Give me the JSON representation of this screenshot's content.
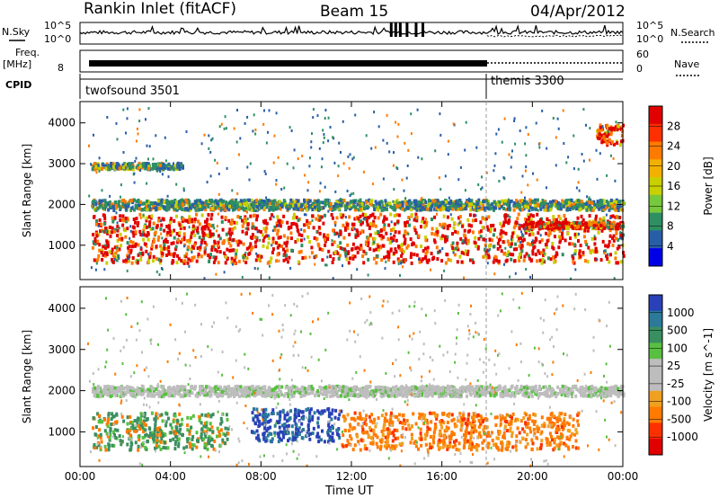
{
  "header": {
    "station": "Rankin Inlet (fitACF)",
    "beam": "Beam 15",
    "date": "04/Apr/2012"
  },
  "top_panels": {
    "nsky_label": "N.Sky",
    "nsky_ticks": [
      "10^5",
      "10^0"
    ],
    "nsearch_label": "N.Search",
    "nsearch_ticks": [
      "10^5",
      "10^0"
    ],
    "freq_label": "Freq.",
    "freq_unit": "[MHz]",
    "freq_tick": "8",
    "nave_label": "Nave",
    "nave_ticks": [
      "60",
      "0"
    ],
    "cpid_label": "CPID",
    "cpid_segments": [
      {
        "name": "twofsound 3501",
        "start_h": 0,
        "end_h": 18
      },
      {
        "name": "themis 3300",
        "start_h": 18,
        "end_h": 24
      }
    ]
  },
  "chart_data": [
    {
      "type": "heatmap",
      "title": "Power",
      "xlabel": "",
      "ylabel": "Slant Range [km]",
      "xlim": [
        0,
        24
      ],
      "ylim": [
        180,
        4500
      ],
      "yticks": [
        "1000",
        "2000",
        "3000",
        "4000"
      ],
      "colorbar": {
        "label": "Power [dB]",
        "ticks": [
          "28",
          "24",
          "20",
          "16",
          "12",
          "8",
          "4"
        ],
        "colors": [
          "#e00000",
          "#ff3000",
          "#ff7a00",
          "#f2b000",
          "#c8d000",
          "#76c83c",
          "#2e8f63",
          "#285ea8",
          "#0000e6"
        ]
      },
      "features": [
        {
          "desc": "main echo band",
          "t_start": 0.5,
          "t_end": 24,
          "range_min_km": 600,
          "range_max_km": 1800,
          "power_db": 24
        },
        {
          "desc": "upper band",
          "t_start": 0.5,
          "t_end": 24,
          "range_min_km": 1900,
          "range_max_km": 2150,
          "power_db": 10
        },
        {
          "desc": "far range 3000 km",
          "t_start": 0.5,
          "t_end": 4.5,
          "range_min_km": 2900,
          "range_max_km": 3050,
          "power_db": 12
        },
        {
          "desc": "late high range echoes",
          "t_start": 22.8,
          "t_end": 24,
          "range_min_km": 3500,
          "range_max_km": 4000,
          "power_db": 24
        },
        {
          "desc": "late band 1500 km",
          "t_start": 19.5,
          "t_end": 24,
          "range_min_km": 1450,
          "range_max_km": 1600,
          "power_db": 26
        }
      ]
    },
    {
      "type": "heatmap",
      "title": "Velocity",
      "xlabel": "Time UT",
      "ylabel": "Slant Range [km]",
      "xlim": [
        0,
        24
      ],
      "ylim": [
        180,
        4500
      ],
      "xticks": [
        "00:00",
        "04:00",
        "08:00",
        "12:00",
        "16:00",
        "20:00",
        "00:00"
      ],
      "yticks": [
        "1000",
        "2000",
        "3000",
        "4000"
      ],
      "colorbar": {
        "label": "Velocity [m s^-1]",
        "ticks": [
          "1000",
          "500",
          "100",
          "25",
          "-25",
          "-100",
          "-500",
          "-1000"
        ],
        "colors": [
          "#2a40b8",
          "#2b7a9a",
          "#3a8f60",
          "#58c040",
          "#bdbdbd",
          "#bdbdbd",
          "#f0a020",
          "#ff7a00",
          "#ff3000",
          "#e00000"
        ]
      },
      "features": [
        {
          "desc": "positive velocity region",
          "t_start": 0.5,
          "t_end": 6.5,
          "range_min_km": 600,
          "range_max_km": 1500,
          "velocity_ms": 400
        },
        {
          "desc": "strong positive 07-11 UT",
          "t_start": 7.5,
          "t_end": 11.5,
          "range_min_km": 800,
          "range_max_km": 1600,
          "velocity_ms": 1000
        },
        {
          "desc": "negative velocity region",
          "t_start": 11.5,
          "t_end": 22,
          "range_min_km": 600,
          "range_max_km": 1500,
          "velocity_ms": -500
        },
        {
          "desc": "ground scatter upper band",
          "t_start": 0.5,
          "t_end": 24,
          "range_min_km": 1900,
          "range_max_km": 2150,
          "velocity_ms": 0
        }
      ]
    }
  ]
}
